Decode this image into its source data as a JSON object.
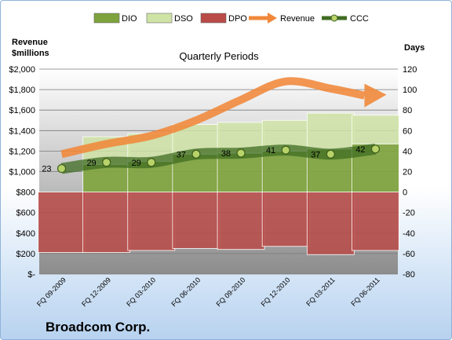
{
  "chart_data": {
    "type": "bar",
    "title": "Quarterly Periods",
    "company": "Broadcom Corp.",
    "left_axis": {
      "label_line1": "Revenue",
      "label_line2": "$millions",
      "ylim": [
        0,
        2000
      ],
      "ticks": [
        0,
        200,
        400,
        600,
        800,
        1000,
        1200,
        1400,
        1600,
        1800,
        2000
      ],
      "tick_labels": [
        "$-",
        "$200",
        "$400",
        "$600",
        "$800",
        "$1,000",
        "$1,200",
        "$1,400",
        "$1,600",
        "$1,800",
        "$2,000"
      ]
    },
    "right_axis": {
      "label": "Days",
      "ylim": [
        -80,
        120
      ],
      "ticks": [
        -80,
        -60,
        -40,
        -20,
        0,
        20,
        40,
        60,
        80,
        100,
        120
      ],
      "tick_labels": [
        "-80",
        "-60",
        "-40",
        "-20",
        "0",
        "20",
        "40",
        "60",
        "80",
        "100",
        "120"
      ]
    },
    "categories": [
      "FQ 09-2009",
      "FQ 12-2009",
      "FQ 03-2010",
      "FQ 06-2010",
      "FQ 09-2010",
      "FQ 12-2010",
      "FQ 03-2011",
      "FQ 06-2011"
    ],
    "legend": [
      "DIO",
      "DSO",
      "DPO",
      "Revenue",
      "CCC"
    ],
    "series": [
      {
        "name": "DIO",
        "axis": "right",
        "color": "#7ea33c",
        "values": [
          0,
          27,
          30,
          37,
          38,
          40,
          42,
          47
        ]
      },
      {
        "name": "DSO",
        "axis": "right",
        "color": "#cfe3a6",
        "values": [
          0,
          27,
          27,
          29,
          30,
          30,
          35,
          28
        ]
      },
      {
        "name": "DPO",
        "axis": "right",
        "color": "#b94a48",
        "values": [
          -59,
          -59,
          -57,
          -55,
          -56,
          -53,
          -61,
          -57
        ]
      },
      {
        "name": "Revenue",
        "axis": "left",
        "color": "#f0883a",
        "values": [
          1170,
          1270,
          1350,
          1500,
          1700,
          1880,
          1810,
          1750
        ]
      },
      {
        "name": "CCC",
        "axis": "right",
        "color": "#3f6c22",
        "values": [
          23,
          29,
          29,
          37,
          38,
          41,
          37,
          42
        ]
      }
    ],
    "ccc_labels": [
      "23",
      "29",
      "29",
      "37",
      "38",
      "41",
      "37",
      "42"
    ],
    "grid": true,
    "legend_position": "top"
  }
}
